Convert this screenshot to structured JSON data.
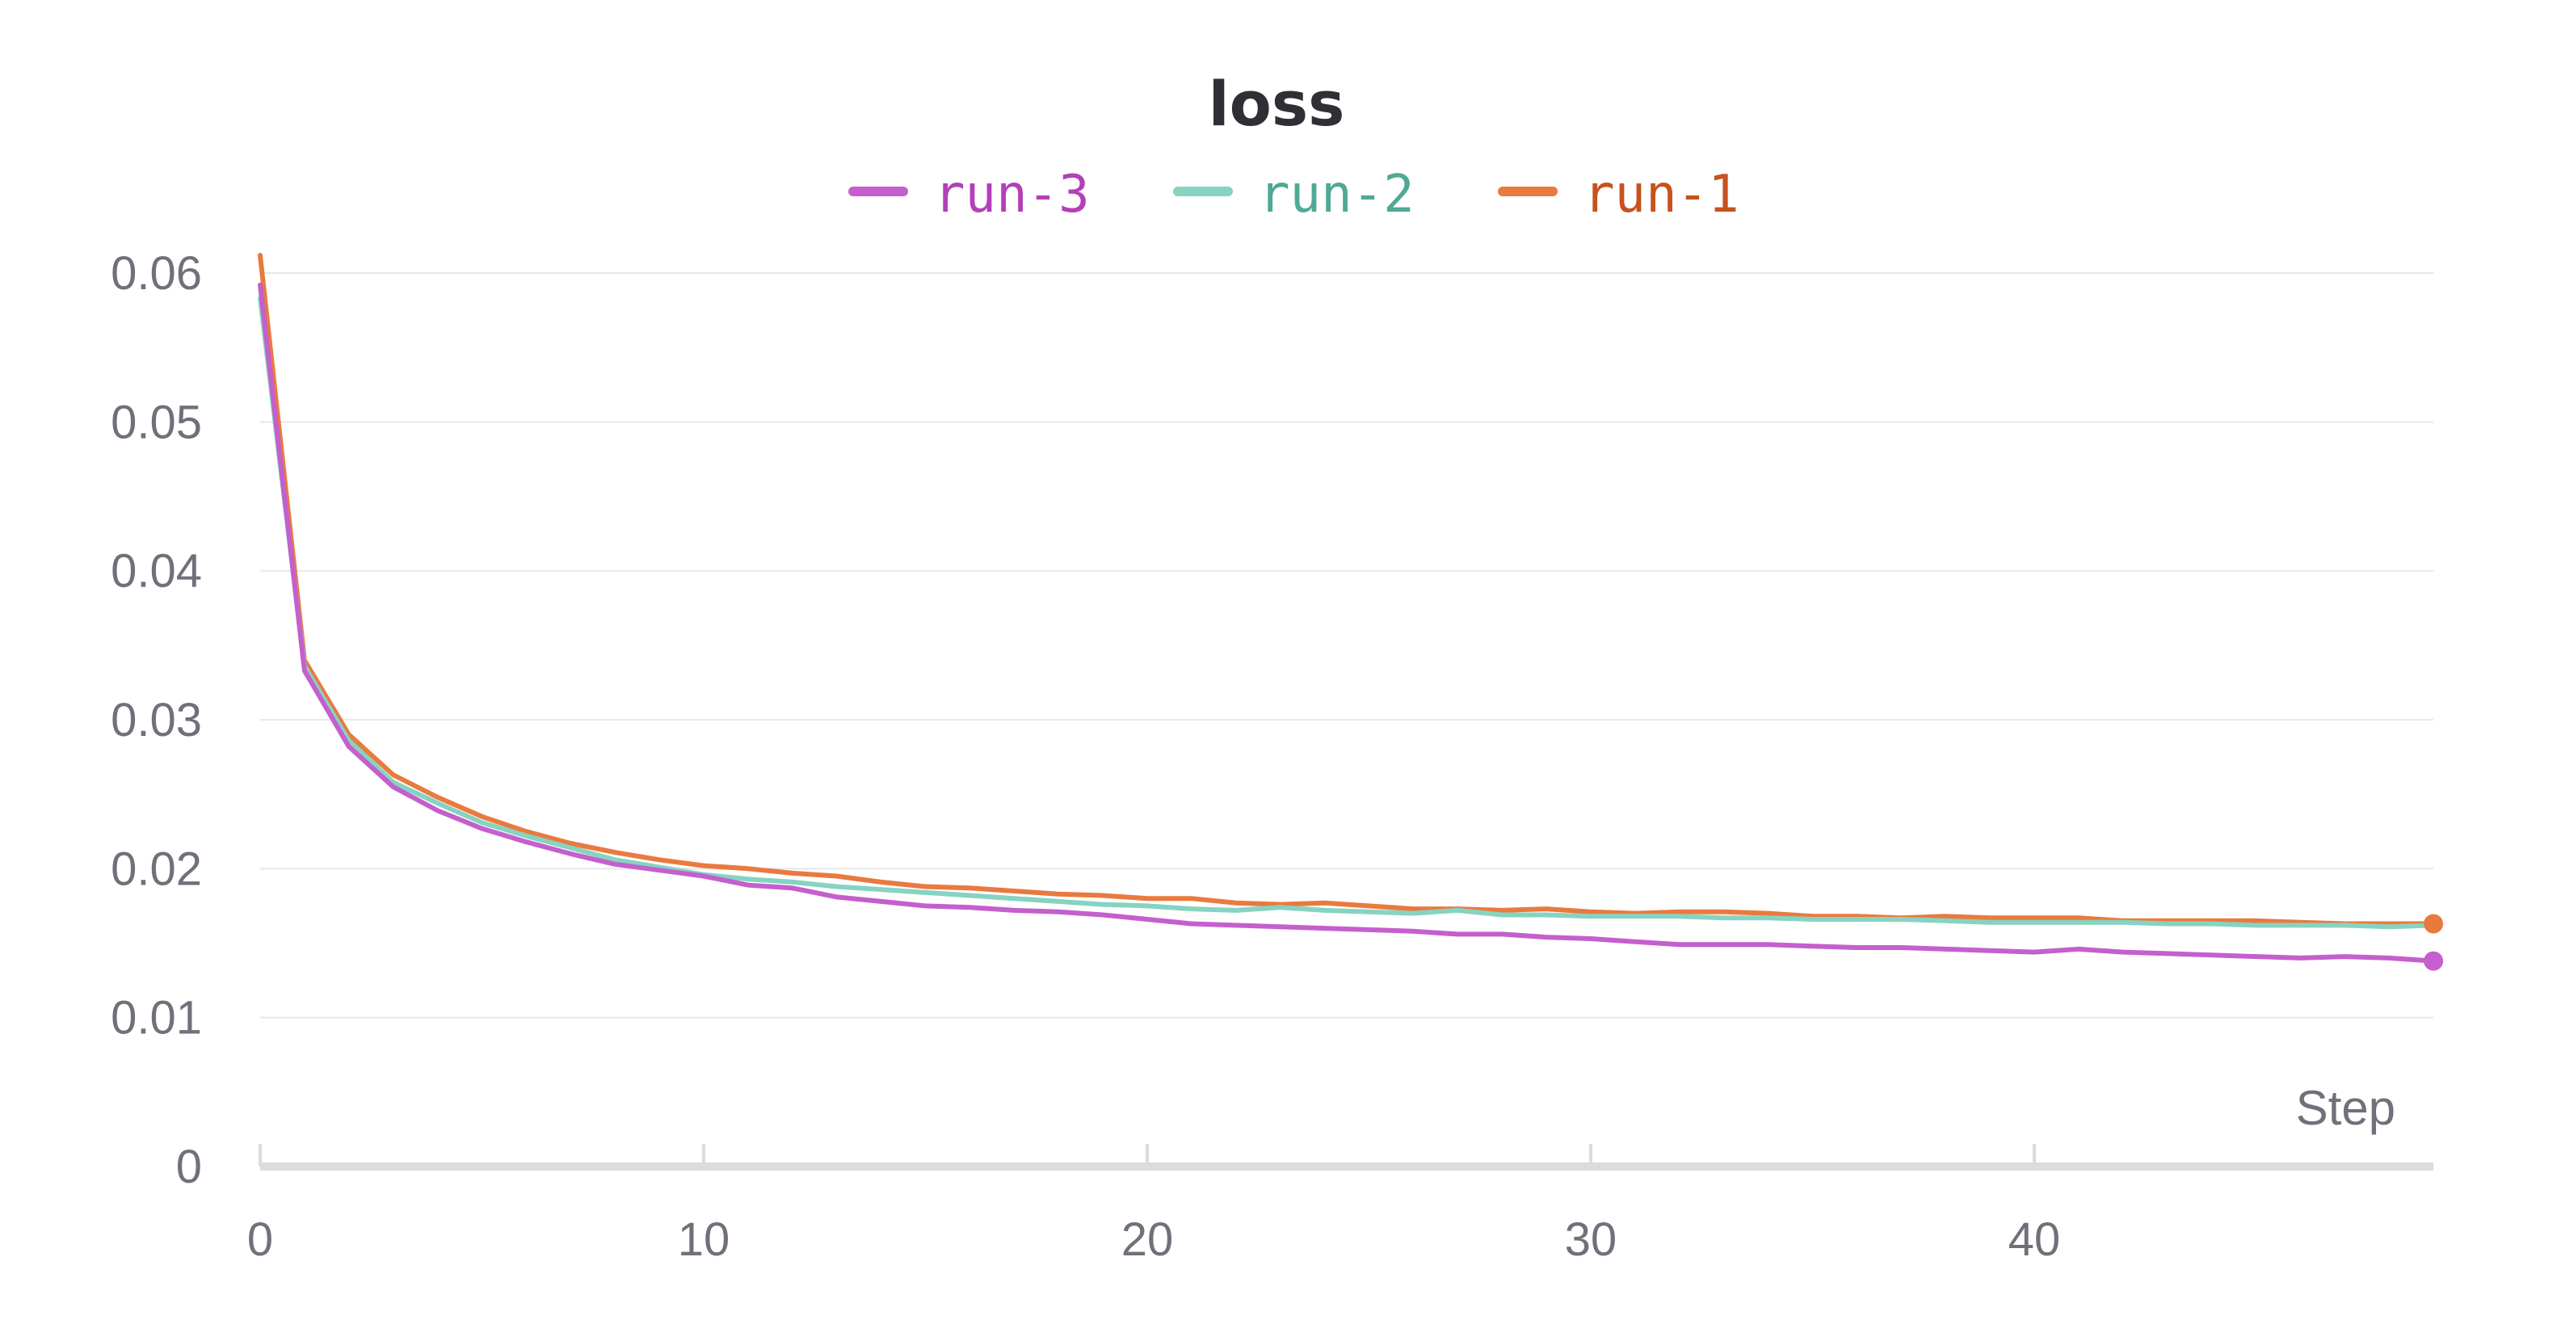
{
  "chart_data": {
    "type": "line",
    "title": "loss",
    "xlabel": "Step",
    "ylabel": "",
    "xlim": [
      0,
      49
    ],
    "ylim": [
      0,
      0.06
    ],
    "x_ticks": [
      0,
      10,
      20,
      30,
      40
    ],
    "y_ticks": [
      0,
      0.01,
      0.02,
      0.03,
      0.04,
      0.05,
      0.06
    ],
    "y_tick_labels": [
      "0",
      "0.01",
      "0.02",
      "0.03",
      "0.04",
      "0.05",
      "0.06"
    ],
    "grid": true,
    "legend": "top-center",
    "x": [
      0,
      1,
      2,
      3,
      4,
      5,
      6,
      7,
      8,
      9,
      10,
      11,
      12,
      13,
      14,
      15,
      16,
      17,
      18,
      19,
      20,
      21,
      22,
      23,
      24,
      25,
      26,
      27,
      28,
      29,
      30,
      31,
      32,
      33,
      34,
      35,
      36,
      37,
      38,
      39,
      40,
      41,
      42,
      43,
      44,
      45,
      46,
      47,
      48,
      49
    ],
    "series": [
      {
        "name": "run-3",
        "color": "#c45fcd",
        "legend_text_color": "#b340b8",
        "end_marker": true,
        "values": [
          0.0592,
          0.0333,
          0.0282,
          0.0255,
          0.0239,
          0.0227,
          0.0218,
          0.021,
          0.0203,
          0.0199,
          0.0195,
          0.0189,
          0.0187,
          0.0181,
          0.0178,
          0.0175,
          0.0174,
          0.0172,
          0.0171,
          0.0169,
          0.0166,
          0.0163,
          0.0162,
          0.0161,
          0.016,
          0.0159,
          0.0158,
          0.0156,
          0.0156,
          0.0154,
          0.0153,
          0.0151,
          0.0149,
          0.0149,
          0.0149,
          0.0148,
          0.0147,
          0.0147,
          0.0146,
          0.0145,
          0.0144,
          0.0146,
          0.0144,
          0.0143,
          0.0142,
          0.0141,
          0.014,
          0.0141,
          0.014,
          0.0138
        ]
      },
      {
        "name": "run-2",
        "color": "#87d3c2",
        "legend_text_color": "#4fa994",
        "end_marker": false,
        "values": [
          0.0583,
          0.0336,
          0.0286,
          0.0258,
          0.0244,
          0.0231,
          0.0222,
          0.0214,
          0.0206,
          0.0201,
          0.0196,
          0.0193,
          0.0191,
          0.0188,
          0.0186,
          0.0184,
          0.0182,
          0.018,
          0.0178,
          0.0176,
          0.0175,
          0.0173,
          0.0172,
          0.0174,
          0.0172,
          0.0171,
          0.017,
          0.0172,
          0.0169,
          0.0169,
          0.0168,
          0.0168,
          0.0168,
          0.0167,
          0.0167,
          0.0166,
          0.0166,
          0.0166,
          0.0165,
          0.0164,
          0.0164,
          0.0164,
          0.0164,
          0.0163,
          0.0163,
          0.0162,
          0.0162,
          0.0162,
          0.0161,
          0.0162
        ]
      },
      {
        "name": "run-1",
        "color": "#e97a3f",
        "legend_text_color": "#c6531f",
        "end_marker": true,
        "values": [
          0.0612,
          0.034,
          0.029,
          0.0263,
          0.0248,
          0.0235,
          0.0225,
          0.0217,
          0.0211,
          0.0206,
          0.0202,
          0.02,
          0.0197,
          0.0195,
          0.0191,
          0.0188,
          0.0187,
          0.0185,
          0.0183,
          0.0182,
          0.018,
          0.018,
          0.0177,
          0.0176,
          0.0177,
          0.0175,
          0.0173,
          0.0173,
          0.0172,
          0.0173,
          0.0171,
          0.017,
          0.0171,
          0.0171,
          0.017,
          0.0168,
          0.0168,
          0.0167,
          0.0168,
          0.0167,
          0.0167,
          0.0167,
          0.0165,
          0.0165,
          0.0165,
          0.0165,
          0.0164,
          0.0163,
          0.0163,
          0.0163
        ]
      }
    ]
  }
}
